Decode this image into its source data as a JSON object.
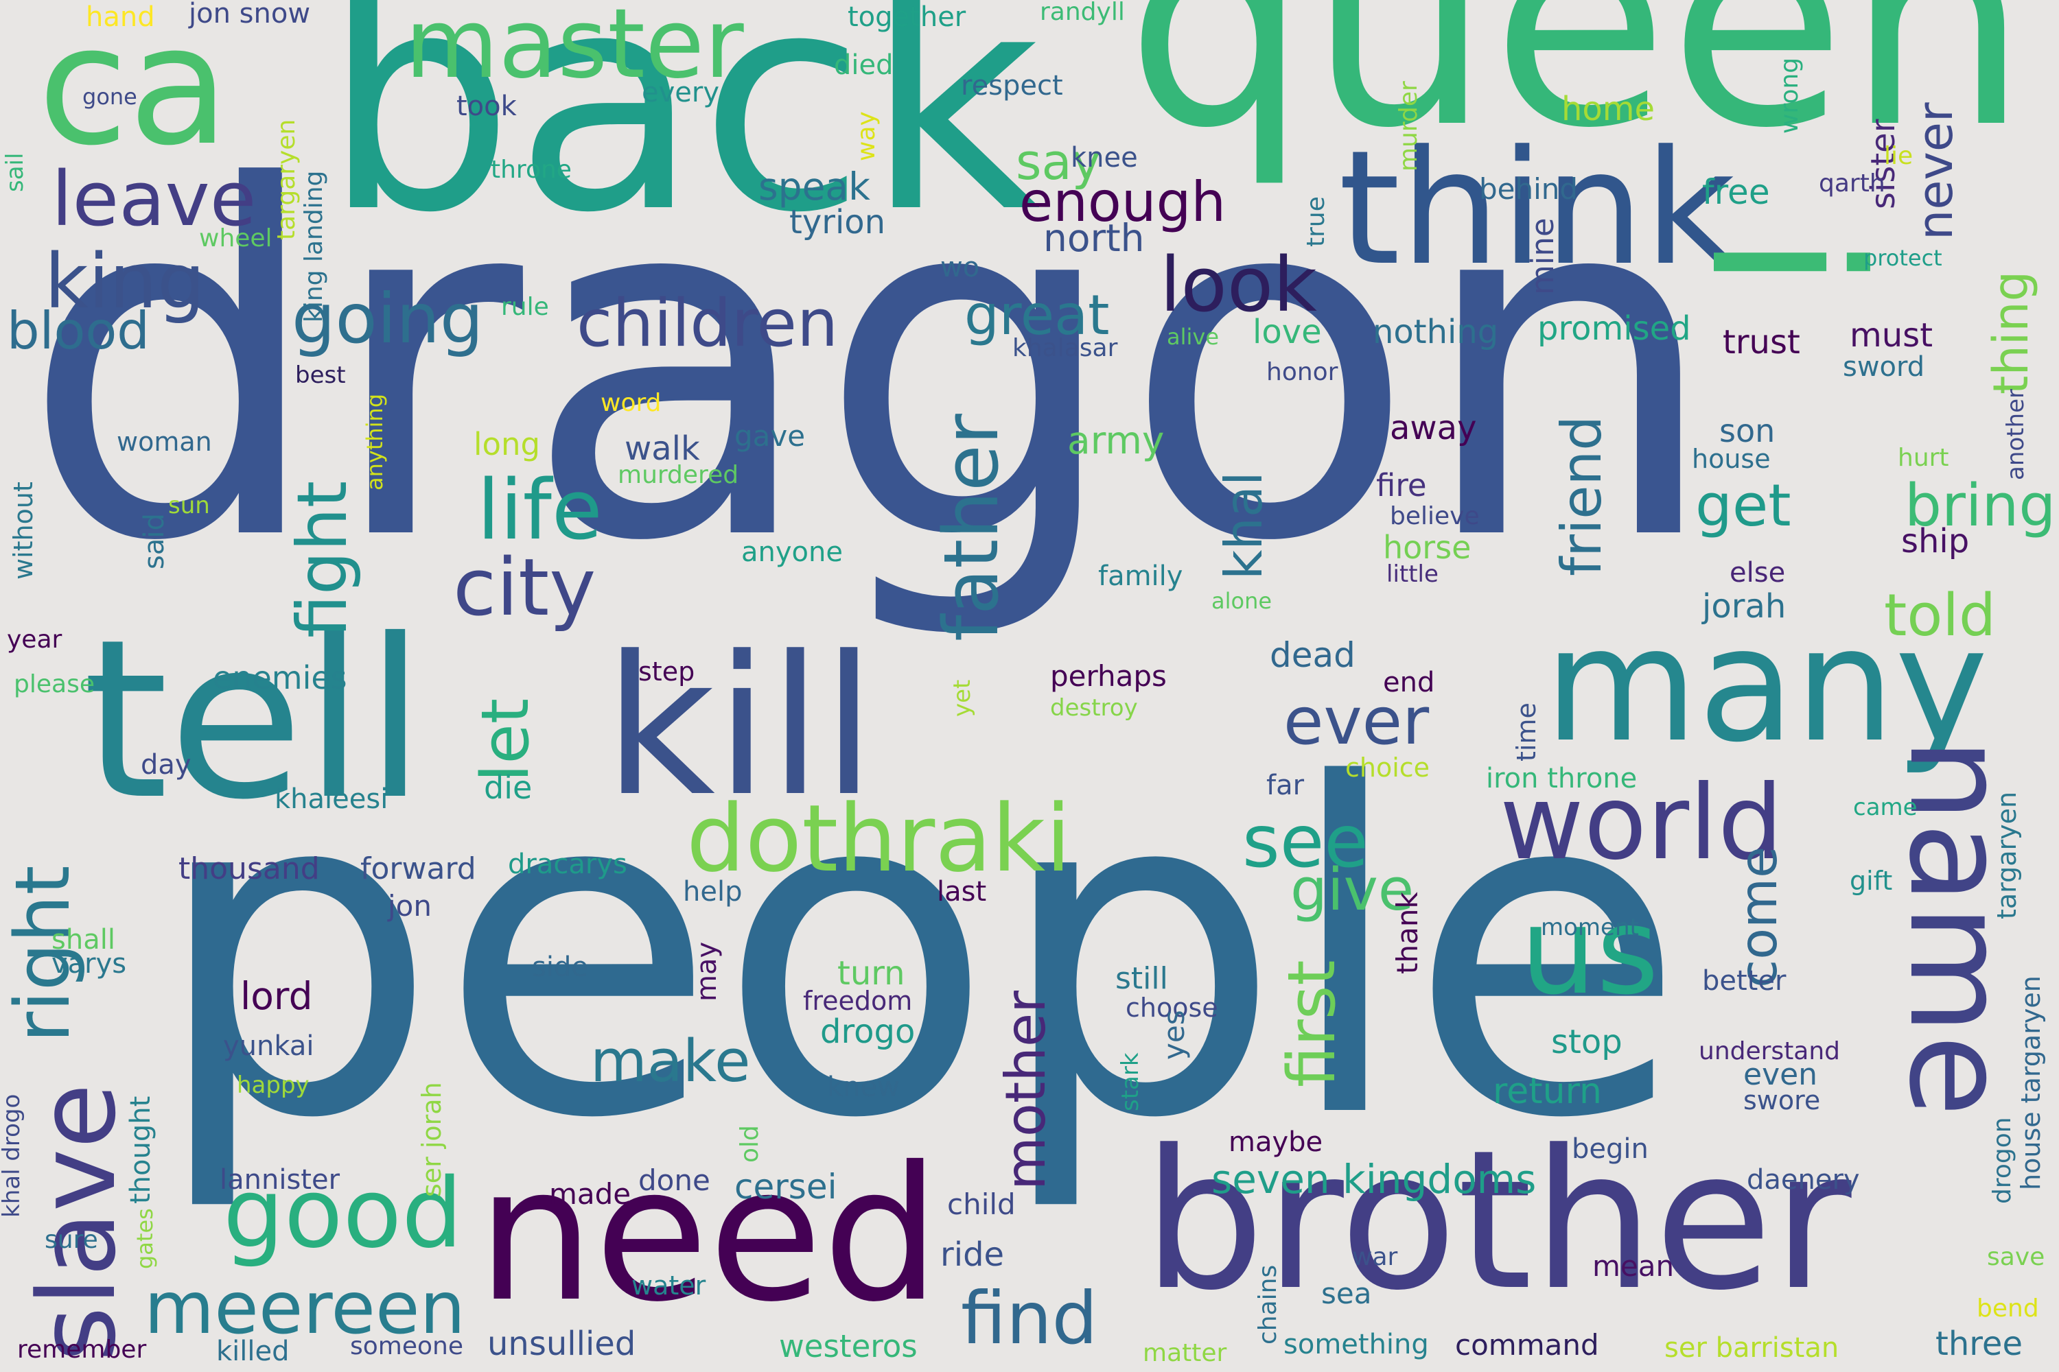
{
  "words": [
    {
      "text": "dragon",
      "color": "#3a5590"
    },
    {
      "text": "people",
      "color": "#2f6a90"
    },
    {
      "text": "queen",
      "color": "#35b779"
    },
    {
      "text": "back",
      "color": "#1f9e89"
    },
    {
      "text": "brother",
      "color": "#433f85"
    },
    {
      "text": "tell",
      "color": "#25848e"
    },
    {
      "text": "need",
      "color": "#440154"
    },
    {
      "text": "kill",
      "color": "#3b528b"
    },
    {
      "text": "think",
      "color": "#31568c"
    },
    {
      "text": "many",
      "color": "#25878e"
    },
    {
      "text": "ca",
      "color": "#4ac16d"
    },
    {
      "text": "name",
      "color": "#414487"
    },
    {
      "text": "slave",
      "color": "#433e85"
    },
    {
      "text": "master",
      "color": "#4ac16d"
    },
    {
      "text": "world",
      "color": "#433e85"
    },
    {
      "text": "dothraki",
      "color": "#7ad151"
    },
    {
      "text": "us",
      "color": "#21a685"
    },
    {
      "text": "good",
      "color": "#29af7f"
    },
    {
      "text": "meereen",
      "color": "#287d8e"
    },
    {
      "text": "i",
      "color": "#3cbb75"
    },
    {
      "text": "look",
      "color": "#2d1e5d"
    },
    {
      "text": "king",
      "color": "#3b528b"
    },
    {
      "text": "leave",
      "color": "#433e85"
    },
    {
      "text": "life",
      "color": "#1f9a8a"
    },
    {
      "text": "city",
      "color": "#3f4788"
    },
    {
      "text": "children",
      "color": "#3e4a89"
    },
    {
      "text": "going",
      "color": "#2e6f8e"
    },
    {
      "text": "father",
      "color": "#2c728e"
    },
    {
      "text": "fight",
      "color": "#21908d"
    },
    {
      "text": "right",
      "color": "#2a788e"
    },
    {
      "text": "let",
      "color": "#29af7f"
    },
    {
      "text": "ever",
      "color": "#3b528b"
    },
    {
      "text": "first",
      "color": "#6ece58"
    },
    {
      "text": "see",
      "color": "#1fa088"
    },
    {
      "text": "find",
      "color": "#31688e"
    },
    {
      "text": "make",
      "color": "#2a788e"
    },
    {
      "text": "mother",
      "color": "#482878"
    },
    {
      "text": "friend",
      "color": "#2d708e"
    },
    {
      "text": "khal",
      "color": "#2c728e"
    },
    {
      "text": "give",
      "color": "#4ac16d"
    },
    {
      "text": "come",
      "color": "#31688e"
    },
    {
      "text": "told",
      "color": "#75d054"
    },
    {
      "text": "bring",
      "color": "#3cbb75"
    },
    {
      "text": "get",
      "color": "#1f9a8a"
    },
    {
      "text": "thing",
      "color": "#7ad151"
    },
    {
      "text": "never",
      "color": "#3e4989"
    },
    {
      "text": "great",
      "color": "#2a788e"
    },
    {
      "text": "enough",
      "color": "#440154"
    },
    {
      "text": "blood",
      "color": "#2e6d8e"
    },
    {
      "text": "say",
      "color": "#5ec962"
    },
    {
      "text": "north",
      "color": "#3b528b"
    },
    {
      "text": "speak",
      "color": "#2c728e"
    },
    {
      "text": "tyrion",
      "color": "#31688e"
    },
    {
      "text": "army",
      "color": "#5ec962"
    },
    {
      "text": "walk",
      "color": "#3b528b"
    },
    {
      "text": "love",
      "color": "#35b779"
    },
    {
      "text": "nothing",
      "color": "#2d708e"
    },
    {
      "text": "promised",
      "color": "#21a685"
    },
    {
      "text": "trust",
      "color": "#440154"
    },
    {
      "text": "must",
      "color": "#471063"
    },
    {
      "text": "seven kingdoms",
      "color": "#1f9e89"
    },
    {
      "text": "return",
      "color": "#1fa088"
    },
    {
      "text": "unsullied",
      "color": "#3b528b"
    },
    {
      "text": "westeros",
      "color": "#35b779"
    },
    {
      "text": "cersei",
      "color": "#2d708e"
    },
    {
      "text": "lord",
      "color": "#440154"
    },
    {
      "text": "jon snow",
      "color": "#3e4989"
    },
    {
      "text": "together",
      "color": "#1fa088"
    },
    {
      "text": "randyll",
      "color": "#3cbb75"
    },
    {
      "text": "hand",
      "color": "#fde725"
    },
    {
      "text": "took",
      "color": "#3e4a89"
    },
    {
      "text": "every",
      "color": "#21918c"
    },
    {
      "text": "respect",
      "color": "#31688e"
    },
    {
      "text": "died",
      "color": "#35b779"
    },
    {
      "text": "home",
      "color": "#a5db36"
    },
    {
      "text": "sister",
      "color": "#482878"
    },
    {
      "text": "murder",
      "color": "#8fd744"
    },
    {
      "text": "wrong",
      "color": "#2ab07f"
    },
    {
      "text": "knee",
      "color": "#3b528b"
    },
    {
      "text": "behind",
      "color": "#31688e"
    },
    {
      "text": "free",
      "color": "#1fa088"
    },
    {
      "text": "qarth",
      "color": "#443a83"
    },
    {
      "text": "protect",
      "color": "#1f9e89"
    },
    {
      "text": "gone",
      "color": "#3e4a89"
    },
    {
      "text": "throne",
      "color": "#22a785"
    },
    {
      "text": "targaryen",
      "color": "#b5de2b"
    },
    {
      "text": "king landing",
      "color": "#2c728e"
    },
    {
      "text": "wheel",
      "color": "#5ec962"
    },
    {
      "text": "way",
      "color": "#dde318"
    },
    {
      "text": "wo",
      "color": "#31688e"
    },
    {
      "text": "true",
      "color": "#2a788e"
    },
    {
      "text": "mine",
      "color": "#3e4a89"
    },
    {
      "text": "lie",
      "color": "#c8e020"
    },
    {
      "text": "sail",
      "color": "#35b779"
    },
    {
      "text": "rule",
      "color": "#35b779"
    },
    {
      "text": "best",
      "color": "#2d1e5d"
    },
    {
      "text": "khalasar",
      "color": "#3b528b"
    },
    {
      "text": "alive",
      "color": "#5ec962"
    },
    {
      "text": "honor",
      "color": "#3e4a89"
    },
    {
      "text": "sword",
      "color": "#2d708e"
    },
    {
      "text": "another",
      "color": "#3e4989"
    },
    {
      "text": "word",
      "color": "#fde725"
    },
    {
      "text": "anything",
      "color": "#d2e21b"
    },
    {
      "text": "woman",
      "color": "#31688e"
    },
    {
      "text": "long",
      "color": "#b5de2b"
    },
    {
      "text": "gave",
      "color": "#2d708e"
    },
    {
      "text": "away",
      "color": "#440154"
    },
    {
      "text": "son",
      "color": "#31688e"
    },
    {
      "text": "house",
      "color": "#2d708e"
    },
    {
      "text": "hurt",
      "color": "#7ad151"
    },
    {
      "text": "murdered",
      "color": "#5ec962"
    },
    {
      "text": "fire",
      "color": "#46327e"
    },
    {
      "text": "believe",
      "color": "#3e4989"
    },
    {
      "text": "horse",
      "color": "#75d054"
    },
    {
      "text": "little",
      "color": "#472d7b"
    },
    {
      "text": "sun",
      "color": "#a0da39"
    },
    {
      "text": "said",
      "color": "#2c728e"
    },
    {
      "text": "without",
      "color": "#2a788e"
    },
    {
      "text": "anyone",
      "color": "#1fa088"
    },
    {
      "text": "family",
      "color": "#26828e"
    },
    {
      "text": "alone",
      "color": "#5ec962"
    },
    {
      "text": "else",
      "color": "#482576"
    },
    {
      "text": "ship",
      "color": "#471164"
    },
    {
      "text": "jorah",
      "color": "#2c728e"
    },
    {
      "text": "year",
      "color": "#440154"
    },
    {
      "text": "please",
      "color": "#4ac16d"
    },
    {
      "text": "enemies",
      "color": "#26828e"
    },
    {
      "text": "step",
      "color": "#440154"
    },
    {
      "text": "perhaps",
      "color": "#440154"
    },
    {
      "text": "destroy",
      "color": "#86d549"
    },
    {
      "text": "dead",
      "color": "#31688e"
    },
    {
      "text": "end",
      "color": "#440154"
    },
    {
      "text": "yet",
      "color": "#a5db36"
    },
    {
      "text": "time",
      "color": "#3b528b"
    },
    {
      "text": "day",
      "color": "#3e4a89"
    },
    {
      "text": "khaleesi",
      "color": "#26828e"
    },
    {
      "text": "die",
      "color": "#1fa088"
    },
    {
      "text": "choice",
      "color": "#b5de2b"
    },
    {
      "text": "far",
      "color": "#3b528b"
    },
    {
      "text": "iron throne",
      "color": "#35b779"
    },
    {
      "text": "came",
      "color": "#22a785"
    },
    {
      "text": "thousand",
      "color": "#433e85"
    },
    {
      "text": "forward",
      "color": "#3b528b"
    },
    {
      "text": "dracarys",
      "color": "#1f9a8a"
    },
    {
      "text": "targaryen",
      "color": "#2a788e"
    },
    {
      "text": "gift",
      "color": "#21918c"
    },
    {
      "text": "help",
      "color": "#31688e"
    },
    {
      "text": "last",
      "color": "#440154"
    },
    {
      "text": "thank",
      "color": "#440154"
    },
    {
      "text": "jon",
      "color": "#3e4989"
    },
    {
      "text": "shall",
      "color": "#5ec962"
    },
    {
      "text": "varys",
      "color": "#2a788e"
    },
    {
      "text": "moment",
      "color": "#2d708e"
    },
    {
      "text": "may",
      "color": "#471063"
    },
    {
      "text": "side",
      "color": "#31688e"
    },
    {
      "text": "turn",
      "color": "#5ec962"
    },
    {
      "text": "freedom",
      "color": "#482878"
    },
    {
      "text": "drogo",
      "color": "#1f9a8a"
    },
    {
      "text": "still",
      "color": "#2a788e"
    },
    {
      "text": "choose",
      "color": "#3e4a89"
    },
    {
      "text": "better",
      "color": "#3b528b"
    },
    {
      "text": "house targaryen",
      "color": "#31688e"
    },
    {
      "text": "stop",
      "color": "#1f9a8a"
    },
    {
      "text": "understand",
      "color": "#482878"
    },
    {
      "text": "even",
      "color": "#31688e"
    },
    {
      "text": "swore",
      "color": "#3b528b"
    },
    {
      "text": "khal drogo",
      "color": "#3e4a89"
    },
    {
      "text": "thought",
      "color": "#26828e"
    },
    {
      "text": "yunkai",
      "color": "#3b528b"
    },
    {
      "text": "happy",
      "color": "#a0da39"
    },
    {
      "text": "ser jorah",
      "color": "#8fd744"
    },
    {
      "text": "knew",
      "color": "#31688e"
    },
    {
      "text": "stark",
      "color": "#1fa088"
    },
    {
      "text": "yes",
      "color": "#31688e"
    },
    {
      "text": "drogon",
      "color": "#2c728e"
    },
    {
      "text": "lannister",
      "color": "#3e4a89"
    },
    {
      "text": "old",
      "color": "#5ec962"
    },
    {
      "text": "maybe",
      "color": "#440154"
    },
    {
      "text": "begin",
      "color": "#3b528b"
    },
    {
      "text": "daenery",
      "color": "#3b528b"
    },
    {
      "text": "made",
      "color": "#440154"
    },
    {
      "text": "done",
      "color": "#3e4989"
    },
    {
      "text": "child",
      "color": "#3e4a89"
    },
    {
      "text": "ride",
      "color": "#3b528b"
    },
    {
      "text": "gates",
      "color": "#8fd744"
    },
    {
      "text": "sure",
      "color": "#2d708e"
    },
    {
      "text": "chains",
      "color": "#2d708e"
    },
    {
      "text": "war",
      "color": "#3b528b"
    },
    {
      "text": "mean",
      "color": "#471063"
    },
    {
      "text": "water",
      "color": "#25848e"
    },
    {
      "text": "sea",
      "color": "#2d708e"
    },
    {
      "text": "save",
      "color": "#7ad151"
    },
    {
      "text": "bend",
      "color": "#dde318"
    },
    {
      "text": "remember",
      "color": "#440154"
    },
    {
      "text": "killed",
      "color": "#2d708e"
    },
    {
      "text": "someone",
      "color": "#3e4a89"
    },
    {
      "text": "matter",
      "color": "#8fd744"
    },
    {
      "text": "something",
      "color": "#26828e"
    },
    {
      "text": "command",
      "color": "#2d1e5d"
    },
    {
      "text": "ser barristan",
      "color": "#b5de2b"
    },
    {
      "text": "three",
      "color": "#2c728e"
    }
  ]
}
